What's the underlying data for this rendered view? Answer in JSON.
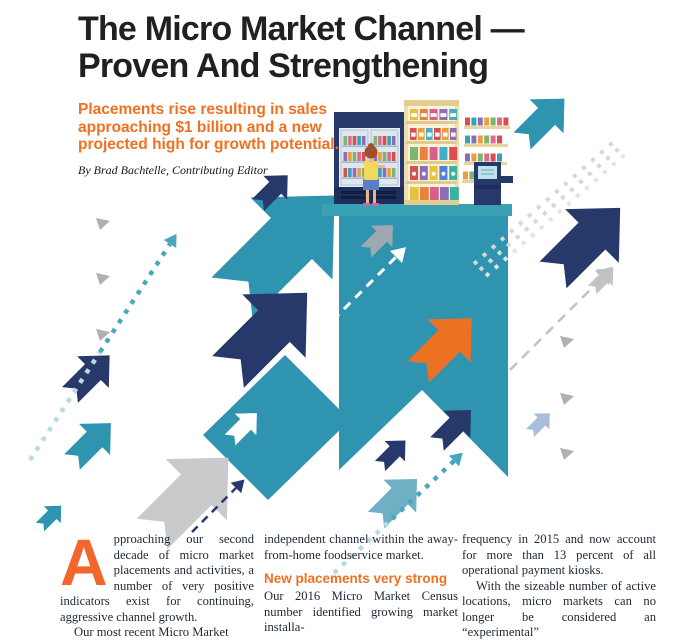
{
  "page": {
    "headline": {
      "line1": "The Micro Market Channel —",
      "line2": "Proven And Strengthening"
    },
    "standfirst": "Placements rise resulting in sales approaching $1 billion and a new projected high for growth potential.",
    "byline": "By Brad Bachtelle, Contributing Editor"
  },
  "article": {
    "column1": {
      "drop_cap": "A",
      "paragraph1": "pproaching our second decade of micro market placements and activities, a number of very positive indicators exist for continuing, aggressive channel growth.",
      "paragraph2_partial": "Our most recent Micro Market"
    },
    "column2": {
      "paragraph1": "independent channel within the away-from-home foodservice market.",
      "subhead": "New placements very strong",
      "paragraph2": "Our 2016 Micro Market Census number identified growing market installa-"
    },
    "column3": {
      "paragraph1": "frequency in 2015 and now account for more than 13 percent of all operational payment kiosks.",
      "paragraph2": "With the sizeable number of active locations, micro markets can no longer be considered an “experimental”"
    }
  },
  "illustration": {
    "name": "micro-market-scene",
    "elements": [
      "cooler",
      "shopper",
      "shelf-unit",
      "wall-shelves",
      "payment-kiosk"
    ]
  },
  "colors": {
    "teal": "#2E94AF",
    "navy": "#27386B",
    "orange": "#EC7123",
    "gray": "#C9CACC",
    "light_gray": "#D6D7D8",
    "steel_blue": "#A9BFD8",
    "light_teal": "#6FB0C5",
    "teal_dots": "#4AA6BD",
    "teal_dots_faded": "#B7DBE3",
    "headline_text": "#231F20",
    "body_text": "#1D2836",
    "accent_orange_text": "#F1701F",
    "floor_teal": "#3AA0B5"
  }
}
